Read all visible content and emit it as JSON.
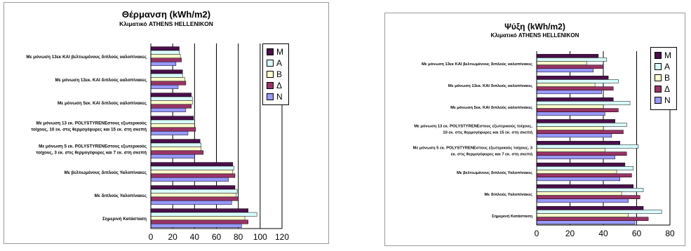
{
  "chart_data": [
    {
      "type": "bar",
      "orientation": "horizontal",
      "title": "Θέρμανση (kWh/m2)",
      "subtitle": "Κλιματικό ATHENS HELLENIKON",
      "categories": [
        [
          "Με μόνωση 13εκ  ΚΑΙ βελτιωμένους διπλούς υαλοπίνακες"
        ],
        [
          "Με μόνωση 13εκ. ΚΑΙ διπλούς υαλοπίνακες"
        ],
        [
          "Με μόνωση 5εκ. ΚΑΙ διπλούς υαλοπίνακες"
        ],
        [
          "Με μόνωση 13 εκ. POLYSTYRENEστους εξωτερικούς",
          "τοίχους, 10  εκ. στις θερμογέφυρες και 15 εκ. στη σκεπή"
        ],
        [
          "Με μόνωση 5 εκ. POLYSTYRENEστους εξωτερικούς",
          "τοίχους, 3  εκ. στις θερμογέφυρες και 7 εκ. στη σκεπή"
        ],
        [
          "Με βελτιωμένους διπλούς Υαλοπίνακες"
        ],
        [
          "Με διπλούς Υαλοπίνακες"
        ],
        [
          "Σημερινή Κατάσταση"
        ]
      ],
      "series": [
        {
          "name": "M",
          "color": "#4b0f4b",
          "values": [
            26,
            29,
            37,
            39,
            45,
            75,
            77,
            89
          ]
        },
        {
          "name": "A",
          "color": "#d9ffff",
          "values": [
            26,
            29,
            38,
            40,
            46,
            76,
            79,
            97
          ]
        },
        {
          "name": "B",
          "color": "#ffffcc",
          "values": [
            27,
            31,
            38,
            40,
            46,
            75,
            78,
            86
          ]
        },
        {
          "name": "Δ",
          "color": "#993366",
          "values": [
            28,
            32,
            37,
            41,
            48,
            77,
            80,
            89
          ]
        },
        {
          "name": "N",
          "color": "#9999ff",
          "values": [
            23,
            25,
            32,
            34,
            40,
            71,
            74,
            83
          ]
        }
      ],
      "xlim": [
        0,
        120
      ],
      "xticks": [
        0,
        20,
        40,
        60,
        80,
        100,
        120
      ],
      "grid": true,
      "legend": "right"
    },
    {
      "type": "bar",
      "orientation": "horizontal",
      "title": "Ψύξη (kWh/m2)",
      "subtitle": "Κλιματικό ATHENS HELLENIKON",
      "categories": [
        [
          "Με μόνωση 13εκ  ΚΑΙ βελτιωμένους διπλούς υαλοπίνακες"
        ],
        [
          "Με μόνωση 13εκ. ΚΑΙ διπλούς υαλοπίνακες"
        ],
        [
          "Με μόνωση 5εκ. ΚΑΙ διπλούς υαλοπίνακες"
        ],
        [
          "Με μόνωση 13 εκ. POLYSTYRENEστους εξωτερικούς τοίχους,",
          "10  εκ. στις θερμογέφυρες και 15 εκ. στη σκεπή"
        ],
        [
          "Με μόνωση 5 εκ. POLYSTYRENEστους εξωτερικούς τοίχους, 3",
          "εκ. στις θερμογέφυρες και 7 εκ. στη σκεπή"
        ],
        [
          "Με βελτιωμένους διπλούς Υαλοπίνακες"
        ],
        [
          "Με διπλούς Υαλοπίνακες"
        ],
        [
          "Σημερινή Κατάσταση"
        ]
      ],
      "series": [
        {
          "name": "M",
          "color": "#4b0f4b",
          "values": [
            37,
            43,
            46,
            47,
            50,
            53,
            58,
            64
          ]
        },
        {
          "name": "A",
          "color": "#d9ffff",
          "values": [
            42,
            49,
            56,
            54,
            61,
            58,
            64,
            75
          ]
        },
        {
          "name": "B",
          "color": "#ffffcc",
          "values": [
            30,
            35,
            40,
            40,
            41,
            48,
            51,
            55
          ]
        },
        {
          "name": "Δ",
          "color": "#993366",
          "values": [
            40,
            46,
            49,
            52,
            54,
            57,
            62,
            67
          ]
        },
        {
          "name": "N",
          "color": "#9999ff",
          "values": [
            34,
            39,
            41,
            45,
            47,
            50,
            55,
            59
          ]
        }
      ],
      "xlim": [
        0,
        80
      ],
      "xticks": [
        0,
        20,
        40,
        60,
        80
      ],
      "grid": true,
      "legend": "right"
    }
  ]
}
